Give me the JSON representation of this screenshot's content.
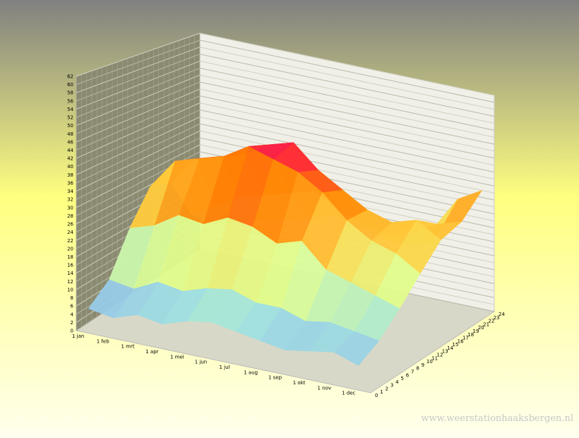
{
  "chart_data": {
    "type": "surface",
    "categories": [
      "1 jan",
      "1 feb",
      "1 mrt",
      "1 apr",
      "1 mei",
      "1 jun",
      "1 jul",
      "1 aug",
      "1 sep",
      "1 okt",
      "1 nov",
      "1 dec"
    ],
    "z": [
      0,
      4,
      8,
      12,
      16,
      20,
      24
    ],
    "values": [
      [
        6,
        5,
        7,
        6,
        8,
        9,
        8,
        7,
        6,
        7,
        8,
        6
      ],
      [
        10,
        9,
        12,
        11,
        13,
        14,
        12,
        12,
        10,
        11,
        10,
        9
      ],
      [
        20,
        22,
        26,
        25,
        28,
        27,
        24,
        26,
        20,
        18,
        16,
        14
      ],
      [
        28,
        36,
        38,
        40,
        44,
        42,
        40,
        36,
        30,
        26,
        24,
        20
      ],
      [
        26,
        34,
        36,
        38,
        42,
        44,
        38,
        34,
        30,
        28,
        30,
        26
      ],
      [
        14,
        18,
        22,
        24,
        26,
        28,
        24,
        22,
        20,
        22,
        26,
        28
      ],
      [
        8,
        10,
        12,
        14,
        16,
        18,
        16,
        14,
        14,
        16,
        30,
        34
      ]
    ],
    "ylim": [
      0,
      62
    ],
    "yticks": [
      0,
      2,
      4,
      6,
      8,
      10,
      12,
      14,
      16,
      18,
      20,
      22,
      24,
      26,
      28,
      30,
      32,
      34,
      36,
      38,
      40,
      42,
      44,
      46,
      48,
      50,
      52,
      54,
      56,
      58,
      60,
      62
    ],
    "zlim": [
      0,
      24
    ],
    "zticks": [
      0,
      1,
      2,
      3,
      4,
      5,
      6,
      7,
      8,
      9,
      10,
      11,
      12,
      13,
      14,
      15,
      16,
      17,
      18,
      19,
      20,
      21,
      22,
      23,
      24
    ],
    "colorscale": [
      {
        "value": 0,
        "color": "#8080ff"
      },
      {
        "value": 10,
        "color": "#a0e4e0"
      },
      {
        "value": 18,
        "color": "#e0ff90"
      },
      {
        "value": 26,
        "color": "#ffd040"
      },
      {
        "value": 34,
        "color": "#ff8000"
      },
      {
        "value": 42,
        "color": "#ff2040"
      },
      {
        "value": 52,
        "color": "#d000a0"
      }
    ],
    "grid": true
  },
  "watermark": "www.weerstationhaaksbergen.nl"
}
